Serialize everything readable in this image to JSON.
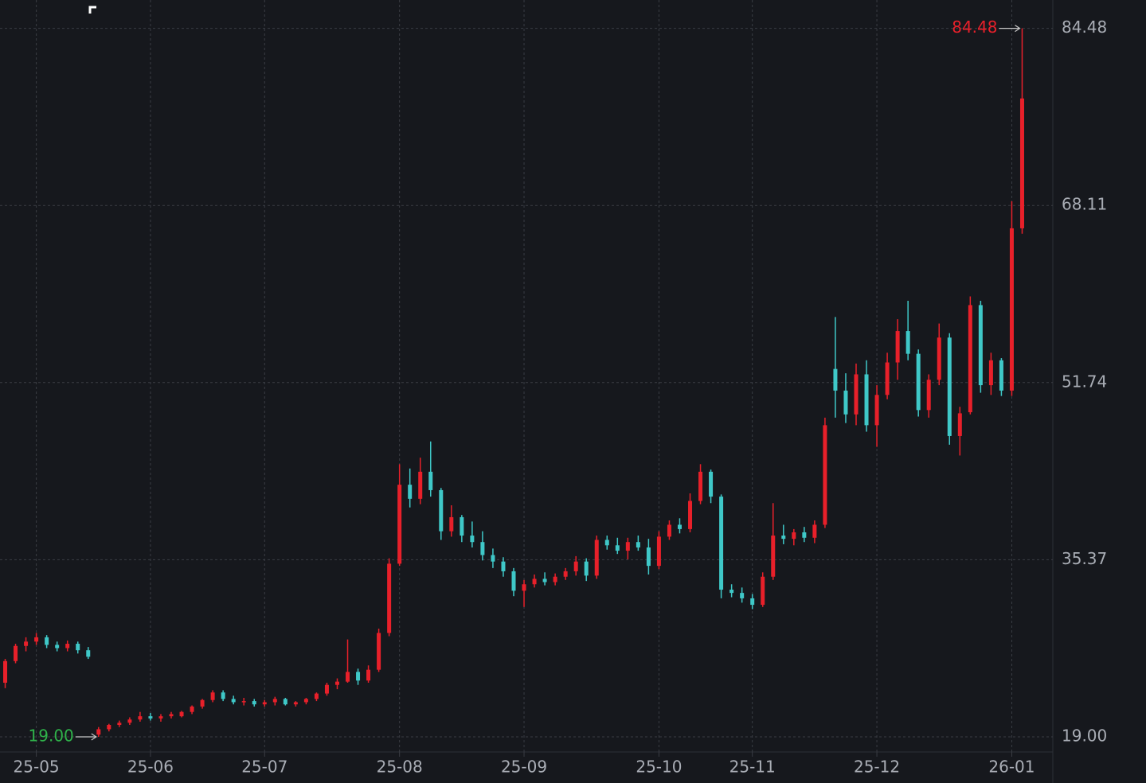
{
  "chart_data": {
    "type": "candlestick",
    "categories": [
      null,
      null,
      null,
      "25-05",
      null,
      null,
      null,
      null,
      null,
      null,
      null,
      null,
      null,
      null,
      "25-06",
      null,
      null,
      null,
      null,
      null,
      null,
      null,
      null,
      null,
      null,
      "25-07",
      null,
      null,
      null,
      null,
      null,
      null,
      null,
      null,
      null,
      null,
      null,
      null,
      "25-08",
      null,
      null,
      null,
      null,
      null,
      null,
      null,
      null,
      null,
      null,
      null,
      "25-09",
      null,
      null,
      null,
      null,
      null,
      null,
      null,
      null,
      null,
      null,
      null,
      null,
      "25-10",
      null,
      null,
      null,
      null,
      null,
      null,
      null,
      null,
      "25-11",
      null,
      null,
      null,
      null,
      null,
      null,
      null,
      null,
      null,
      null,
      null,
      "25-12",
      null,
      null,
      null,
      null,
      null,
      null,
      null,
      null,
      null,
      null,
      null,
      null,
      "26-01",
      null
    ],
    "open": [
      24.0,
      26.0,
      27.4,
      27.8,
      28.2,
      27.5,
      27.2,
      27.6,
      27.0,
      19.2,
      19.7,
      20.1,
      20.3,
      20.6,
      20.9,
      20.7,
      20.9,
      20.9,
      21.3,
      21.8,
      22.4,
      23.1,
      22.5,
      22.2,
      22.3,
      22.0,
      22.2,
      22.5,
      22.0,
      22.2,
      22.5,
      23.0,
      23.8,
      24.1,
      25.0,
      24.2,
      25.2,
      28.6,
      35.0,
      42.3,
      41.0,
      43.5,
      41.8,
      38.0,
      39.3,
      37.6,
      37.0,
      35.8,
      35.2,
      34.3,
      32.5,
      33.1,
      33.6,
      33.3,
      33.8,
      34.3,
      35.2,
      33.9,
      37.2,
      36.7,
      36.2,
      37.0,
      36.5,
      34.8,
      37.5,
      38.6,
      38.2,
      40.8,
      43.5,
      41.2,
      32.6,
      32.3,
      31.8,
      31.2,
      33.8,
      37.6,
      37.3,
      37.9,
      37.4,
      38.6,
      53.0,
      51.0,
      48.8,
      52.5,
      47.8,
      50.6,
      53.6,
      56.5,
      54.4,
      49.2,
      52.0,
      55.9,
      46.8,
      49.0,
      58.9,
      51.5,
      53.8,
      51.0,
      66.0
    ],
    "high": [
      26.2,
      27.6,
      28.2,
      28.6,
      28.4,
      27.8,
      27.9,
      27.8,
      27.3,
      19.9,
      20.2,
      20.5,
      20.8,
      21.3,
      21.2,
      21.1,
      21.3,
      21.4,
      21.9,
      22.5,
      23.3,
      23.3,
      22.8,
      22.6,
      22.5,
      22.4,
      22.7,
      22.6,
      22.3,
      22.6,
      23.1,
      24.0,
      24.4,
      28.0,
      25.3,
      25.6,
      29.0,
      35.5,
      44.2,
      43.8,
      44.8,
      46.3,
      42.0,
      40.4,
      39.5,
      38.9,
      38.0,
      36.4,
      35.6,
      34.6,
      33.5,
      34.0,
      34.2,
      34.1,
      34.6,
      35.7,
      35.5,
      37.6,
      37.6,
      37.4,
      37.4,
      37.6,
      37.3,
      38.0,
      39.0,
      39.2,
      41.5,
      44.2,
      43.7,
      41.4,
      33.1,
      32.8,
      32.2,
      34.2,
      40.6,
      38.6,
      38.2,
      38.4,
      39.0,
      48.5,
      57.8,
      52.6,
      53.5,
      53.8,
      51.5,
      54.5,
      57.6,
      59.3,
      54.8,
      52.5,
      57.2,
      56.3,
      49.5,
      59.7,
      59.3,
      54.5,
      54.0,
      68.5,
      84.48
    ],
    "low": [
      23.5,
      25.8,
      26.9,
      27.5,
      27.2,
      26.9,
      26.9,
      26.7,
      26.2,
      19.0,
      19.5,
      19.9,
      20.1,
      20.4,
      20.5,
      20.4,
      20.7,
      20.8,
      21.1,
      21.6,
      22.2,
      22.3,
      22.0,
      21.9,
      21.8,
      21.8,
      21.9,
      21.9,
      21.8,
      22.0,
      22.3,
      22.8,
      23.4,
      24.0,
      23.8,
      24.0,
      25.0,
      28.3,
      34.8,
      40.2,
      40.5,
      41.2,
      37.2,
      37.5,
      37.0,
      36.5,
      35.3,
      34.6,
      33.8,
      32.0,
      31.0,
      32.8,
      33.0,
      33.0,
      33.5,
      33.9,
      33.4,
      33.6,
      36.3,
      35.9,
      35.4,
      36.2,
      34.0,
      34.5,
      37.2,
      37.8,
      37.9,
      40.5,
      40.6,
      31.8,
      31.9,
      31.4,
      30.8,
      31.0,
      33.5,
      36.8,
      36.7,
      37.0,
      36.9,
      38.3,
      48.5,
      48.0,
      47.8,
      47.2,
      45.8,
      50.2,
      52.0,
      53.8,
      48.6,
      48.5,
      51.5,
      46.0,
      45.0,
      48.8,
      50.8,
      50.6,
      50.5,
      50.5,
      65.5
    ],
    "close": [
      26.0,
      27.4,
      27.8,
      28.2,
      27.5,
      27.2,
      27.6,
      27.0,
      26.4,
      19.7,
      20.1,
      20.3,
      20.6,
      20.9,
      20.7,
      20.9,
      21.1,
      21.3,
      21.8,
      22.4,
      23.1,
      22.5,
      22.2,
      22.3,
      22.0,
      22.2,
      22.5,
      22.0,
      22.2,
      22.5,
      23.0,
      23.8,
      24.1,
      25.0,
      24.2,
      25.2,
      28.6,
      35.0,
      42.3,
      41.0,
      43.5,
      41.8,
      38.0,
      39.3,
      37.6,
      37.0,
      35.8,
      35.2,
      34.3,
      32.5,
      33.1,
      33.6,
      33.3,
      33.8,
      34.3,
      35.2,
      33.9,
      37.2,
      36.7,
      36.2,
      37.0,
      36.5,
      34.8,
      37.5,
      38.6,
      38.2,
      40.8,
      43.5,
      41.2,
      32.6,
      32.3,
      31.8,
      31.2,
      33.8,
      37.6,
      37.3,
      37.9,
      37.4,
      38.6,
      47.8,
      51.0,
      48.8,
      52.5,
      47.8,
      50.6,
      53.6,
      56.5,
      54.4,
      49.2,
      52.0,
      55.9,
      46.8,
      48.9,
      58.9,
      51.5,
      53.8,
      51.0,
      66.0,
      78.0
    ],
    "up_color": "#e8202a",
    "down_color": "#3fc8c8",
    "ylim": [
      17.6,
      87.1
    ],
    "yticks": [
      {
        "value": 19,
        "label": "19.00"
      },
      35.37,
      51.74,
      68.11,
      84.48
    ],
    "grid": true,
    "annotations": [
      {
        "text": "84.48",
        "value": 84.48,
        "color": "#e8202a"
      },
      {
        "text": "19.00",
        "value": 19,
        "color": "#2fb24a"
      }
    ]
  }
}
